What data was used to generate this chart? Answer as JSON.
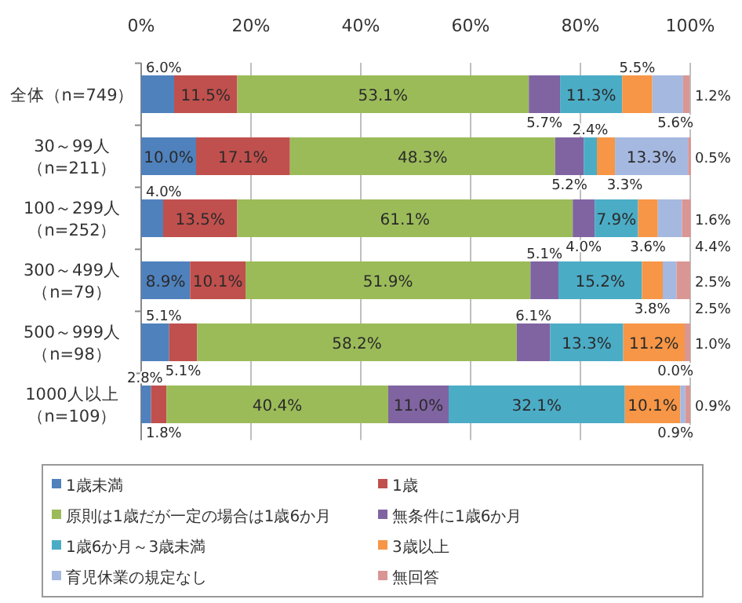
{
  "chart_data": {
    "type": "bar",
    "orientation": "horizontal",
    "stacked": true,
    "grid": "x",
    "legend": "bottom",
    "categories": [
      "全体（n=749）",
      "30～99人（n=211）",
      "100～299人（n=252）",
      "300～499人（n=79）",
      "500～999人（n=98）",
      "1000人以上（n=109）"
    ],
    "xlim": [
      0,
      100
    ],
    "xticks": [
      {
        "value": 0,
        "label": "0%"
      },
      {
        "value": 20,
        "label": "20%"
      },
      {
        "value": 40,
        "label": "40%"
      },
      {
        "value": 60,
        "label": "60%"
      },
      {
        "value": 80,
        "label": "80%"
      },
      {
        "value": 100,
        "label": "100%"
      }
    ],
    "series": [
      {
        "name": "1歳未満",
        "color": "#4f81bd",
        "values": [
          6.0,
          10.0,
          4.0,
          8.9,
          5.1,
          1.8
        ],
        "value_labels": [
          "6.0%",
          "10.0%",
          "4.0%",
          "8.9%",
          "5.1%",
          "1.8%"
        ]
      },
      {
        "name": "1歳",
        "color": "#c0504d",
        "values": [
          11.5,
          17.1,
          13.5,
          10.1,
          5.1,
          2.8
        ],
        "value_labels": [
          "11.5%",
          "17.1%",
          "13.5%",
          "10.1%",
          "5.1%",
          "2.8%"
        ]
      },
      {
        "name": "原則は1歳だが一定の場合は1歳6か月",
        "color": "#9bbb59",
        "values": [
          53.1,
          48.3,
          61.1,
          51.9,
          58.2,
          40.4
        ],
        "value_labels": [
          "53.1%",
          "48.3%",
          "61.1%",
          "51.9%",
          "58.2%",
          "40.4%"
        ]
      },
      {
        "name": "無条件に1歳6か月",
        "color": "#8064a2",
        "values": [
          5.7,
          5.2,
          4.0,
          5.1,
          6.1,
          11.0
        ],
        "value_labels": [
          "5.7%",
          "5.2%",
          "4.0%",
          "5.1%",
          "6.1%",
          "11.0%"
        ]
      },
      {
        "name": "1歳6か月～3歳未満",
        "color": "#4bacc6",
        "values": [
          11.3,
          2.4,
          7.9,
          15.2,
          13.3,
          32.1
        ],
        "value_labels": [
          "11.3%",
          "2.4%",
          "7.9%",
          "15.2%",
          "13.3%",
          "32.1%"
        ]
      },
      {
        "name": "3歳以上",
        "color": "#f79646",
        "values": [
          5.5,
          3.3,
          3.6,
          3.8,
          11.2,
          10.1
        ],
        "value_labels": [
          "5.5%",
          "3.3%",
          "3.6%",
          "3.8%",
          "11.2%",
          "10.1%"
        ]
      },
      {
        "name": "育児休業の規定なし",
        "color": "#a5b8e0",
        "values": [
          5.6,
          13.3,
          4.4,
          2.5,
          0.0,
          0.9
        ],
        "value_labels": [
          "5.6%",
          "13.3%",
          "4.4%",
          "2.5%",
          "0.0%",
          "0.9%"
        ]
      },
      {
        "name": "無回答",
        "color": "#d99694",
        "values": [
          1.2,
          0.5,
          1.6,
          2.5,
          1.0,
          0.9
        ],
        "value_labels": [
          "1.2%",
          "0.5%",
          "1.6%",
          "2.5%",
          "1.0%",
          "0.9%"
        ]
      }
    ]
  }
}
